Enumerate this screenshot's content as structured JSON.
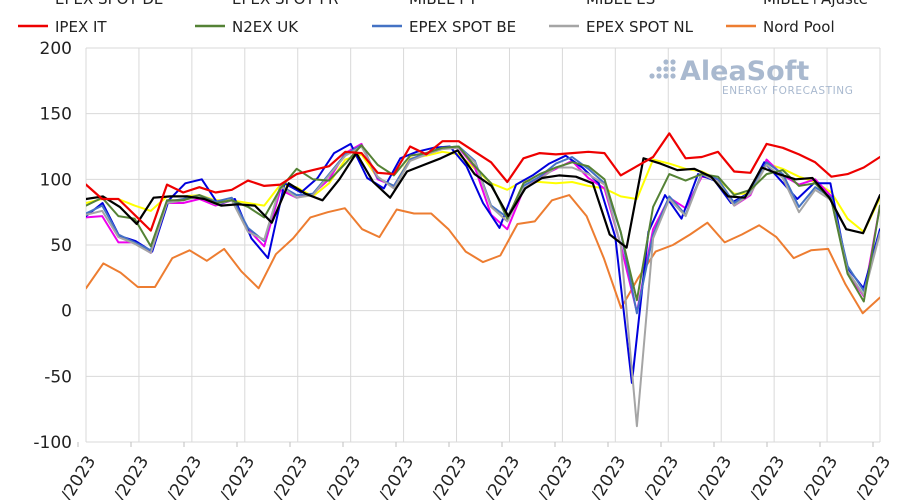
{
  "chart_data": {
    "type": "line",
    "ylim": [
      -100,
      200
    ],
    "yticks": [
      200,
      150,
      100,
      50,
      0,
      -50,
      -100
    ],
    "x_tick_labels": [
      "/2023",
      "/2023",
      "/2023",
      "/2023",
      "/2023",
      "/2023",
      "/2023",
      "/2023",
      "/2023",
      "/2023",
      "/2023",
      "/2023",
      "/2023",
      "/2023",
      "/2023",
      "/2023"
    ],
    "legend_top_partial": [
      "EPEX SPOT DE",
      "EPEX SPOT FR",
      "MIBEL PT",
      "MIBEL ES",
      "MIBEL+Ajuste"
    ],
    "series": [
      {
        "name": "IPEX IT",
        "color": "#ee0000",
        "in_legend": true,
        "values": [
          96,
          85,
          85,
          73,
          61,
          96,
          90,
          94,
          90,
          92,
          99,
          95,
          96,
          104,
          107,
          110,
          121,
          120,
          105,
          104,
          125,
          119,
          129,
          129,
          121,
          113,
          98,
          116,
          120,
          119,
          120,
          121,
          120,
          103,
          110,
          117,
          135,
          116,
          117,
          121,
          106,
          105,
          127,
          124,
          119,
          113,
          102,
          104,
          109,
          117
        ]
      },
      {
        "name": "N2EX UK",
        "color": "#548235",
        "in_legend": true,
        "values": [
          80,
          86,
          72,
          70,
          49,
          84,
          84,
          88,
          82,
          84,
          79,
          71,
          93,
          108,
          100,
          99,
          112,
          126,
          111,
          103,
          118,
          120,
          124,
          125,
          110,
          97,
          70,
          97,
          104,
          109,
          113,
          110,
          100,
          60,
          8,
          79,
          104,
          99,
          104,
          102,
          88,
          92,
          104,
          107,
          95,
          97,
          84,
          28,
          7,
          80
        ]
      },
      {
        "name": "EPEX SPOT BE",
        "color": "#4472c4",
        "in_legend": true,
        "values": [
          74,
          80,
          58,
          52,
          46,
          83,
          85,
          88,
          83,
          86,
          63,
          53,
          95,
          88,
          89,
          104,
          119,
          126,
          101,
          95,
          115,
          120,
          124,
          125,
          114,
          80,
          71,
          95,
          102,
          112,
          117,
          108,
          97,
          60,
          -2,
          58,
          87,
          73,
          105,
          100,
          82,
          90,
          113,
          104,
          79,
          94,
          86,
          34,
          15,
          60
        ]
      },
      {
        "name": "EPEX SPOT NL",
        "color": "#a5a5a5",
        "in_legend": true,
        "values": [
          73,
          76,
          56,
          51,
          44,
          82,
          84,
          87,
          81,
          84,
          60,
          54,
          95,
          86,
          88,
          103,
          118,
          125,
          102,
          93,
          114,
          119,
          123,
          124,
          113,
          79,
          68,
          93,
          100,
          109,
          109,
          104,
          96,
          50,
          -88,
          55,
          85,
          72,
          104,
          98,
          80,
          89,
          111,
          101,
          75,
          92,
          84,
          30,
          12,
          59
        ]
      },
      {
        "name": "Nord Pool",
        "color": "#ed7d31",
        "in_legend": true,
        "values": [
          17,
          36,
          29,
          18,
          18,
          40,
          46,
          38,
          47,
          30,
          17,
          43,
          55,
          71,
          75,
          78,
          62,
          56,
          77,
          74,
          74,
          62,
          45,
          37,
          42,
          66,
          68,
          84,
          88,
          72,
          40,
          2,
          25,
          45,
          50,
          58,
          67,
          52,
          58,
          65,
          56,
          40,
          46,
          47,
          20,
          -2,
          10
        ]
      },
      {
        "name": "EPEX SPOT DE",
        "color": "#0000dd",
        "in_legend": false,
        "values": [
          72,
          82,
          57,
          53,
          45,
          84,
          97,
          100,
          81,
          85,
          55,
          40,
          97,
          90,
          101,
          120,
          127,
          101,
          93,
          116,
          121,
          124,
          125,
          110,
          82,
          63,
          96,
          103,
          112,
          118,
          109,
          97,
          56,
          -55,
          60,
          88,
          70,
          104,
          99,
          82,
          89,
          113,
          99,
          85,
          97,
          97,
          33,
          17,
          62
        ]
      },
      {
        "name": "EPEX SPOT FR",
        "color": "#ee00ee",
        "in_legend": false,
        "values": [
          71,
          72,
          52,
          52,
          44,
          82,
          82,
          85,
          80,
          84,
          62,
          49,
          92,
          86,
          89,
          100,
          120,
          127,
          100,
          95,
          115,
          120,
          124,
          124,
          109,
          73,
          62,
          92,
          102,
          108,
          114,
          101,
          93,
          50,
          -1,
          62,
          86,
          78,
          102,
          100,
          80,
          88,
          115,
          103,
          96,
          100,
          87,
          29,
          11,
          80
        ]
      },
      {
        "name": "MIBEL+Ajuste",
        "color": "#ffff00",
        "in_legend": false,
        "values": [
          82,
          85,
          85,
          80,
          76,
          87,
          87,
          88,
          84,
          84,
          82,
          80,
          96,
          94,
          87,
          97,
          115,
          119,
          101,
          95,
          116,
          118,
          121,
          119,
          108,
          97,
          92,
          99,
          98,
          97,
          98,
          95,
          93,
          87,
          85,
          115,
          112,
          108,
          106,
          100,
          89,
          89,
          112,
          108,
          102,
          98,
          90,
          70,
          60,
          86
        ]
      },
      {
        "name": "MIBEL ES",
        "color": "#000000",
        "in_legend": false,
        "values": [
          85,
          87,
          79,
          66,
          86,
          87,
          87,
          85,
          80,
          81,
          80,
          67,
          97,
          89,
          84,
          100,
          120,
          98,
          86,
          106,
          111,
          116,
          122,
          104,
          95,
          72,
          93,
          101,
          103,
          102,
          97,
          58,
          48,
          116,
          112,
          107,
          108,
          102,
          87,
          86,
          109,
          104,
          100,
          101,
          86,
          62,
          59,
          88
        ]
      }
    ]
  }
}
